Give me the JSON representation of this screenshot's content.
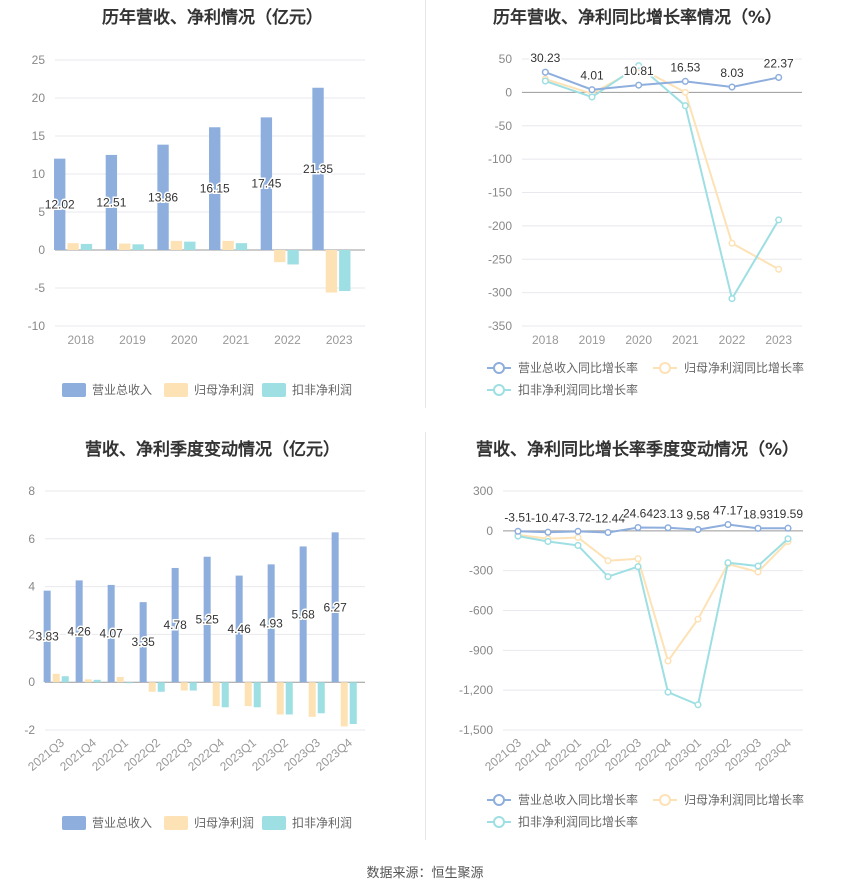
{
  "source_text": "数据来源：恒生聚源",
  "chart_data": [
    {
      "type": "bar",
      "title": "历年营收、净利情况（亿元）",
      "categories": [
        "2018",
        "2019",
        "2020",
        "2021",
        "2022",
        "2023"
      ],
      "series": [
        {
          "name": "营业总收入",
          "values": [
            12.02,
            12.51,
            13.86,
            16.15,
            17.45,
            21.35
          ],
          "color": "#8eaedd"
        },
        {
          "name": "归母净利润",
          "values": [
            0.9,
            0.85,
            1.2,
            1.2,
            -1.6,
            -5.6
          ],
          "color": "#fde2b5"
        },
        {
          "name": "扣非净利润",
          "values": [
            0.8,
            0.75,
            1.1,
            0.9,
            -1.9,
            -5.4
          ],
          "color": "#9edfe3"
        }
      ],
      "value_labels": [
        "12.02",
        "12.51",
        "13.86",
        "16.15",
        "17.45",
        "21.35"
      ],
      "ylim": [
        -10,
        25
      ],
      "yticks": [
        "25",
        "20",
        "15",
        "10",
        "5",
        "0",
        "-5",
        "-10"
      ],
      "legend": "bottom",
      "grid": true
    },
    {
      "type": "line",
      "title": "历年营收、净利同比增长率情况（%）",
      "categories": [
        "2018",
        "2019",
        "2020",
        "2021",
        "2022",
        "2023"
      ],
      "series": [
        {
          "name": "营业总收入同比增长率",
          "values": [
            30.23,
            4.01,
            10.81,
            16.53,
            8.03,
            22.37
          ],
          "color": "#8eaedd"
        },
        {
          "name": "归母净利润同比增长率",
          "values": [
            20,
            -2,
            37,
            0,
            -226,
            -265
          ],
          "color": "#fde2b5"
        },
        {
          "name": "扣非净利润同比增长率",
          "values": [
            17,
            -7,
            40,
            -20,
            -309,
            -191
          ],
          "color": "#9edfe3"
        }
      ],
      "value_labels": [
        "30.23",
        "4.01",
        "10.81",
        "16.53",
        "8.03",
        "22.37"
      ],
      "ylim": [
        -350,
        50
      ],
      "yticks": [
        "50",
        "0",
        "-50",
        "-100",
        "-150",
        "-200",
        "-250",
        "-300",
        "-350"
      ],
      "legend": "bottom",
      "grid": true
    },
    {
      "type": "bar",
      "title": "营收、净利季度变动情况（亿元）",
      "categories": [
        "2021Q3",
        "2021Q4",
        "2022Q1",
        "2022Q2",
        "2022Q3",
        "2022Q4",
        "2023Q1",
        "2023Q2",
        "2023Q3",
        "2023Q4"
      ],
      "series": [
        {
          "name": "营业总收入",
          "values": [
            3.83,
            4.26,
            4.07,
            3.35,
            4.78,
            5.25,
            4.46,
            4.93,
            5.68,
            6.27
          ],
          "color": "#8eaedd"
        },
        {
          "name": "归母净利润",
          "values": [
            0.35,
            0.12,
            0.22,
            -0.4,
            -0.35,
            -1.0,
            -1.0,
            -1.35,
            -1.45,
            -1.85
          ],
          "color": "#fde2b5"
        },
        {
          "name": "扣非净利润",
          "values": [
            0.25,
            0.1,
            0.0,
            -0.4,
            -0.35,
            -1.05,
            -1.05,
            -1.35,
            -1.3,
            -1.75
          ],
          "color": "#9edfe3"
        }
      ],
      "value_labels": [
        "3.83",
        "4.26",
        "4.07",
        "3.35",
        "4.78",
        "5.25",
        "4.46",
        "4.93",
        "5.68",
        "6.27"
      ],
      "ylim": [
        -2,
        8
      ],
      "yticks": [
        "8",
        "6",
        "4",
        "2",
        "0",
        "-2"
      ],
      "legend": "bottom",
      "grid": true
    },
    {
      "type": "line",
      "title": "营收、净利同比增长率季度变动情况（%）",
      "categories": [
        "2021Q3",
        "2021Q4",
        "2022Q1",
        "2022Q2",
        "2022Q3",
        "2022Q4",
        "2023Q1",
        "2023Q2",
        "2023Q3",
        "2023Q4"
      ],
      "series": [
        {
          "name": "营业总收入同比增长率",
          "values": [
            -3.51,
            -10.47,
            -3.72,
            -12.44,
            24.64,
            23.13,
            9.58,
            47.17,
            18.93,
            19.59
          ],
          "color": "#8eaedd"
        },
        {
          "name": "归母净利润同比增长率",
          "values": [
            -30,
            -60,
            -50,
            -225,
            -210,
            -980,
            -665,
            -250,
            -310,
            -80
          ],
          "color": "#fde2b5"
        },
        {
          "name": "扣非净利润同比增长率",
          "values": [
            -40,
            -80,
            -110,
            -345,
            -270,
            -1215,
            -1310,
            -240,
            -265,
            -60
          ],
          "color": "#9edfe3"
        }
      ],
      "value_labels": [
        "-3.51",
        "-10.47",
        "-3.72",
        "-12.44",
        "24.64",
        "23.13",
        "9.58",
        "47.17",
        "18.93",
        "19.59"
      ],
      "ylim": [
        -1500,
        300
      ],
      "yticks": [
        "300",
        "0",
        "-300",
        "-600",
        "-900",
        "-1,200",
        "-1,500"
      ],
      "legend": "bottom",
      "grid": true
    }
  ]
}
